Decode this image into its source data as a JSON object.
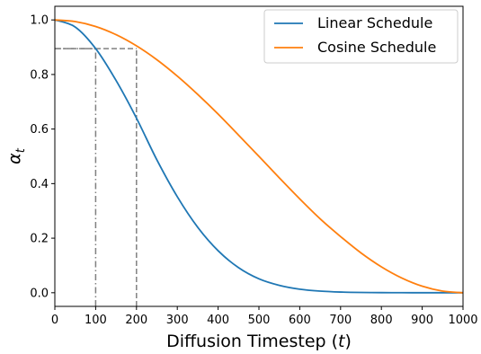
{
  "chart_data": {
    "type": "line",
    "xlabel": "Diffusion Timestep",
    "xlabel_var": "t",
    "ylabel_var": "α",
    "ylabel_sub": "t",
    "xlim": [
      0,
      1000
    ],
    "ylim": [
      -0.05,
      1.05
    ],
    "x_ticks": [
      0,
      100,
      200,
      300,
      400,
      500,
      600,
      700,
      800,
      900,
      1000
    ],
    "y_ticks": [
      "0.0",
      "0.2",
      "0.4",
      "0.6",
      "0.8",
      "1.0"
    ],
    "grid": false,
    "legend_position": "top-right",
    "x": [
      0,
      50,
      100,
      150,
      200,
      250,
      300,
      350,
      400,
      450,
      500,
      550,
      600,
      650,
      700,
      750,
      800,
      850,
      900,
      950,
      1000
    ],
    "series": [
      {
        "name": "Linear Schedule",
        "color": "#1f77b4",
        "values": [
          1.0,
          0.974,
          0.895,
          0.778,
          0.64,
          0.487,
          0.352,
          0.24,
          0.154,
          0.092,
          0.051,
          0.027,
          0.013,
          0.006,
          0.0025,
          0.001,
          0.0004,
          0.00015,
          5e-05,
          2e-05,
          0.0
        ]
      },
      {
        "name": "Cosine Schedule",
        "color": "#ff7f0e",
        "values": [
          1.0,
          0.994,
          0.976,
          0.946,
          0.905,
          0.854,
          0.794,
          0.727,
          0.655,
          0.578,
          0.5,
          0.421,
          0.344,
          0.271,
          0.206,
          0.146,
          0.095,
          0.054,
          0.024,
          0.006,
          0.0
        ]
      }
    ],
    "annotations": [
      {
        "style": "dash-dot",
        "x": 100,
        "y": 0.895
      },
      {
        "style": "dashed",
        "x": 200,
        "y": 0.895
      }
    ]
  }
}
